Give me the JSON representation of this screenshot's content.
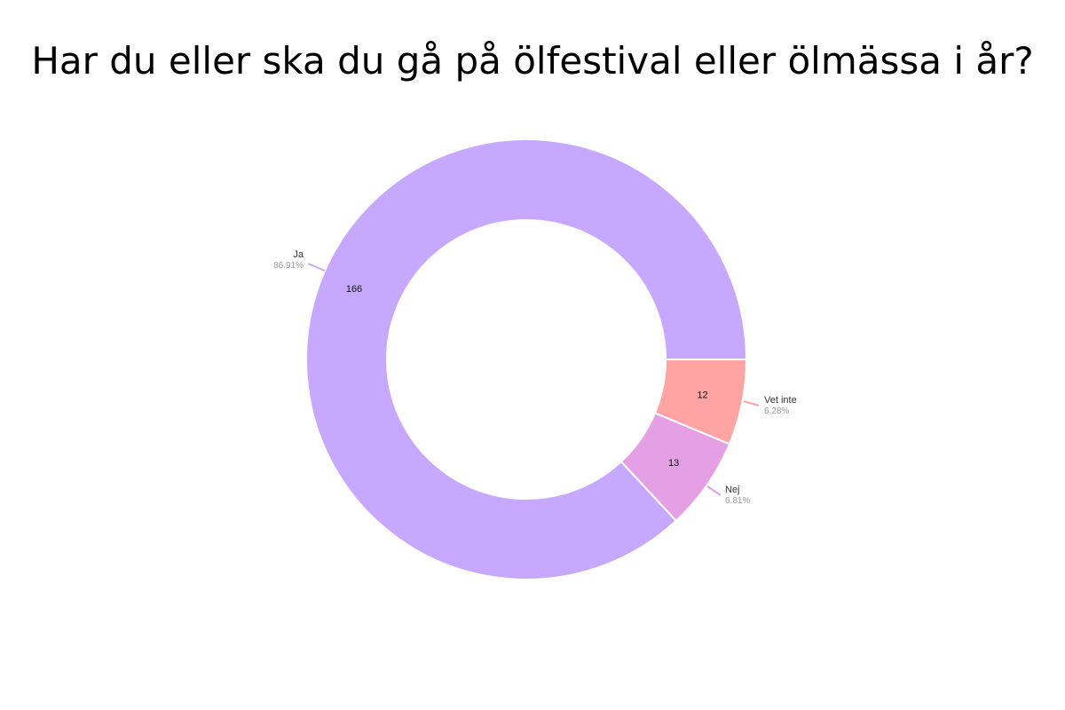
{
  "chart_data": {
    "type": "pie",
    "title": "Har du eller ska du gå på ölfestival eller ölmässa i år?",
    "categories": [
      "Ja",
      "Vet inte",
      "Nej"
    ],
    "values": [
      166,
      12,
      13
    ],
    "percent_labels": [
      "86.91%",
      "6.28%",
      "6.81%"
    ],
    "colors": [
      "#c6a9ff",
      "#ffa3a3",
      "#e5a0e5"
    ],
    "hole": true
  }
}
